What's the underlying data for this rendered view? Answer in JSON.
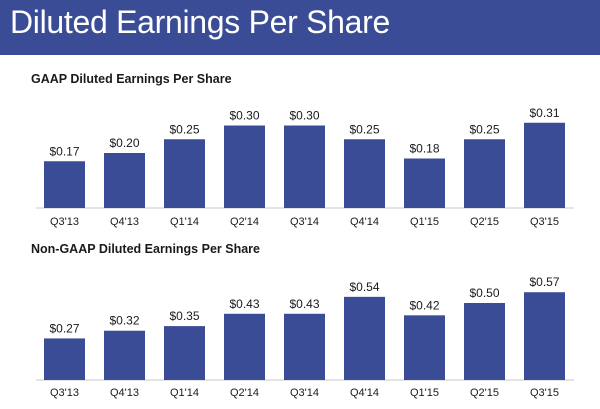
{
  "page": {
    "title": "Diluted Earnings Per Share",
    "accent_color": "#3b4c96"
  },
  "chart_data": [
    {
      "type": "bar",
      "title": "GAAP Diluted Earnings Per Share",
      "categories": [
        "Q3'13",
        "Q4'13",
        "Q1'14",
        "Q2'14",
        "Q3'14",
        "Q4'14",
        "Q1'15",
        "Q2'15",
        "Q3'15"
      ],
      "values": [
        0.17,
        0.2,
        0.25,
        0.3,
        0.3,
        0.25,
        0.18,
        0.25,
        0.31
      ],
      "labels": [
        "$0.17",
        "$0.20",
        "$0.25",
        "$0.30",
        "$0.30",
        "$0.25",
        "$0.18",
        "$0.25",
        "$0.31"
      ],
      "xlabel": "",
      "ylabel": "",
      "grid": false,
      "color": "#3b4c96"
    },
    {
      "type": "bar",
      "title": "Non-GAAP Diluted Earnings Per Share",
      "categories": [
        "Q3'13",
        "Q4'13",
        "Q1'14",
        "Q2'14",
        "Q3'14",
        "Q4'14",
        "Q1'15",
        "Q2'15",
        "Q3'15"
      ],
      "values": [
        0.27,
        0.32,
        0.35,
        0.43,
        0.43,
        0.54,
        0.42,
        0.5,
        0.57
      ],
      "labels": [
        "$0.27",
        "$0.32",
        "$0.35",
        "$0.43",
        "$0.43",
        "$0.54",
        "$0.42",
        "$0.50",
        "$0.57"
      ],
      "xlabel": "",
      "ylabel": "",
      "grid": false,
      "color": "#3b4c96"
    }
  ]
}
